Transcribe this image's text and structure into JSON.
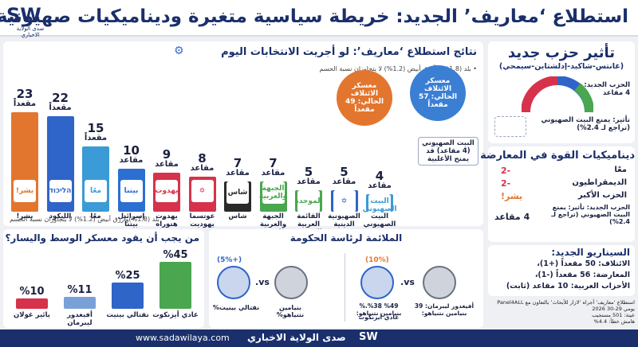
{
  "header": {
    "title": "استطلاع ‘معاريف’ الجديد: خريطة سياسية متغيرة وديناميكيات صهيونية",
    "logo_text": "SW",
    "logo_sub": "صدى الولاية الاخباري"
  },
  "main_chart": {
    "title": "نتائج استطلاع ‘معاريف’: لو أجريت الانتخابات اليوم",
    "note_top": "• بلد (1.8%) وأزرق أبيض (1.2%) لا يتجاوزان نسبة الحسم",
    "note_bottom": "• بلد (1.8%)وأزرق أبيض (1.2%) لا يتجاوزان نسبة الحسم",
    "unit_word": "مقعداً",
    "unit_word_small": "مقاعد",
    "bubble_coalition": "معسكر الائتلاف الحالي: 57 مقعداً",
    "bubble_opposition": "معسكر الائتلاف الحالي: 49 مقعداً",
    "callout": "البيت الصهيوني (4 مقاعد) قد يمنح الأغلبية"
  },
  "chart_data": {
    "type": "bar",
    "title": "نتائج استطلاع ‘معاريف’: لو أجريت الانتخابات اليوم",
    "categories": [
      "يشر!",
      "الليكود",
      "معًا",
      "إسرائيل بيتنا",
      "يهدوت هتوراه",
      "عوتسما يهوديت",
      "شاس",
      "الجبهة والعربية للتغيير",
      "القائمة العربية الموحدة",
      "الصهيونية الدينية",
      "البيت الصهيوني"
    ],
    "values": [
      23,
      22,
      15,
      10,
      9,
      8,
      7,
      7,
      5,
      5,
      4
    ],
    "value_labels": [
      "23",
      "22",
      "15",
      "10",
      "9",
      "8",
      "7",
      "7",
      "5",
      "5",
      "4"
    ],
    "unit_labels": [
      "مقعداً",
      "مقعداً",
      "مقعداً",
      "مقاعد",
      "مقاعد",
      "مقاعد",
      "مقاعد",
      "مقاعد",
      "مقاعد",
      "مقاعد",
      "مقاعد"
    ],
    "logos": [
      "يشر!",
      "הליכוד",
      "معًا",
      "بيتنا",
      "يهدوت",
      "✡",
      "شاس",
      "الجبهة والعربية",
      "الموحدة",
      "✡",
      "البيت الصهيوني"
    ],
    "colors": [
      "#e3762e",
      "#2f64c8",
      "#3a9bd6",
      "#2c6fd1",
      "#d6324b",
      "#d6324b",
      "#2a2a2a",
      "#4aa64f",
      "#4aa64f",
      "#2f64c8",
      "#3a9bd6"
    ],
    "ylim": [
      0,
      25
    ]
  },
  "chart_data_2": {
    "type": "bar",
    "title": "من يجب أن يقود معسكر الوسط واليسار؟",
    "categories": [
      "غادي أيزنكوت",
      "نفتالي بينيت",
      "أفيغدور ليبرمان",
      "يائير غولان"
    ],
    "values": [
      45,
      25,
      11,
      10
    ],
    "value_labels": [
      "%45",
      "%25",
      "%11",
      "%10"
    ],
    "colors": [
      "#4aa64f",
      "#2f64c8",
      "#7aa0d8",
      "#d6324b"
    ],
    "ylim": [
      0,
      50
    ]
  },
  "pm_section": {
    "title": "الملائمة لرئاسة الحكومة",
    "vs": "vs.",
    "left_badge": "(+5%)",
    "left_a_pct": "نفتالي بينيت%",
    "left_a_name": "نفتالي بينيت",
    "left_b_pct": "بنيامين نتنياهو%",
    "left_b_name": "نفتالي بينيت",
    "right_badge": "(10%)",
    "right_a": "أفيغدور ليبرمان: 39 بنيامين نتنياهو:",
    "right_b": "%49 %38.% بنيامين نتنياهو:",
    "right_c": "غادي أيزنكوت"
  },
  "new_party": {
    "title": "تأثير حزب جديد",
    "subtitle": "(غانتس-شاكيد-إدلشتاين-سيمحي)",
    "seats_label": "الحزب الجديد: 4 مقاعد",
    "impact": "تأثير: يمنع البيت الصهيوني (تراجع لـ 2.4%)"
  },
  "dynamics": {
    "title": "ديناميكيات القوة في المعارضة",
    "rows": [
      {
        "name": "معًا",
        "delta": "-2"
      },
      {
        "name": "الديمقراطيون",
        "delta": "-2"
      },
      {
        "name": "الحزب الأكبر",
        "delta": "يشر!"
      }
    ],
    "box_new": "الحزب الجديد: تأثير: يمنع البيت الصهيوني (تراجع لـ 2.4%)",
    "box_seats": "4 مقاعد"
  },
  "scenario": {
    "title": "السيناريو الجديد:",
    "lines": [
      "الائتلاف: 50 مقعداً (+1)،",
      "المعارضة: 56 مقعداً (-1)،",
      "الأحزاب العربية: 10 مقاعد (ثابت)"
    ]
  },
  "source": {
    "lines": [
      "استطلاع ‘معاريف’ أجراه ‘لازار للأبحاث’ بالتعاون مع Panel4ALL",
      "يومي 29-30 2026",
      "عينة: 501 مستجيب",
      "هامش خطأ: 4.4%"
    ]
  },
  "footer": {
    "site": "www.sadawilaya.com",
    "brand": "صدى الولاية الاخباري",
    "brand_logo": "SW"
  },
  "colors": {
    "navy": "#1a2f6b",
    "red": "#d6324b",
    "blue": "#2f64c8",
    "orange": "#e3762e",
    "green": "#4aa64f"
  }
}
